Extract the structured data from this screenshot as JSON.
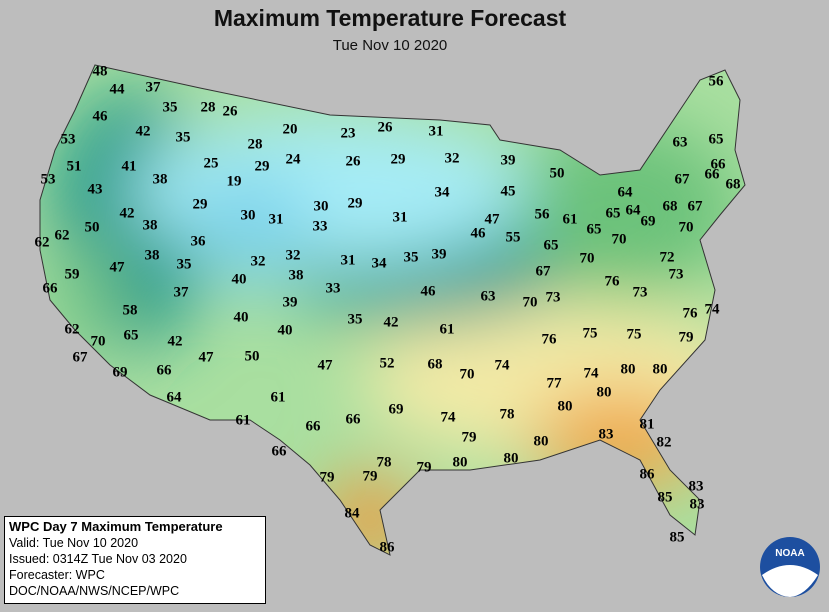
{
  "header": {
    "title": "Maximum Temperature Forecast",
    "date": "Tue Nov 10 2020"
  },
  "temperatures": [
    48,
    44,
    37,
    46,
    35,
    28,
    26,
    56,
    42,
    35,
    20,
    23,
    26,
    31,
    63,
    65,
    53,
    28,
    51,
    41,
    25,
    29,
    24,
    26,
    29,
    32,
    39,
    50,
    66,
    67,
    66,
    68,
    53,
    43,
    38,
    19,
    34,
    45,
    64,
    29,
    30,
    29,
    68,
    67,
    42,
    38,
    30,
    31,
    33,
    31,
    56,
    61,
    65,
    65,
    64,
    69,
    70,
    47,
    62,
    62,
    50,
    36,
    46,
    55,
    65,
    70,
    32,
    32,
    31,
    34,
    35,
    39,
    70,
    72,
    47,
    38,
    35,
    38,
    67,
    76,
    73,
    59,
    40,
    33,
    46,
    63,
    70,
    73,
    73,
    66,
    37,
    58,
    39,
    40,
    35,
    42,
    76,
    74,
    65,
    62,
    40,
    61,
    76,
    75,
    75,
    79,
    70,
    42,
    67,
    47,
    50,
    47,
    52,
    68,
    70,
    74,
    80,
    80,
    74,
    69,
    66,
    77,
    64,
    61,
    66,
    69,
    74,
    78,
    80,
    80,
    61,
    66,
    79,
    81,
    80,
    83,
    66,
    78,
    79,
    80,
    80,
    82,
    79,
    79,
    86,
    85,
    83,
    83,
    84,
    86,
    85
  ],
  "info_box": {
    "lines": [
      "WPC Day 7 Maximum Temperature",
      "Valid: Tue Nov 10 2020",
      "Issued: 0314Z Tue Nov 03 2020",
      "Forecaster: WPC",
      "DOC/NOAA/NWS/NCEP/WPC"
    ]
  },
  "logo": {
    "text": "NOAA"
  }
}
